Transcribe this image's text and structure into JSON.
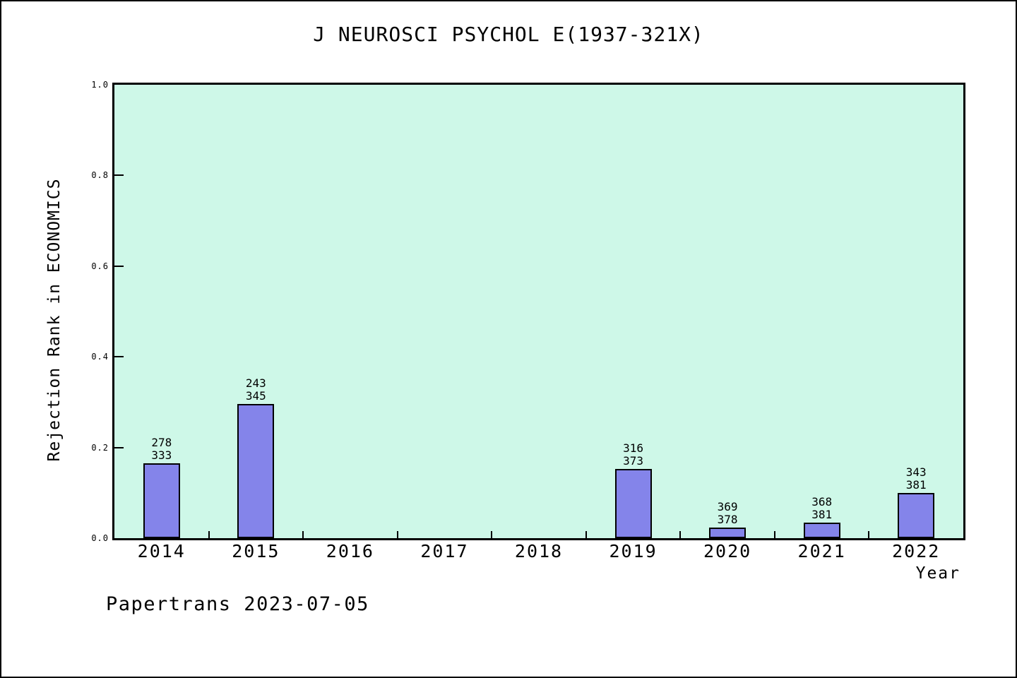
{
  "footer": "Papertrans 2023-07-05",
  "chart_data": {
    "type": "bar",
    "title": "J NEUROSCI PSYCHOL E(1937-321X)",
    "xlabel": "Year",
    "ylabel": "Rejection Rank in ECONOMICS",
    "categories": [
      "2014",
      "2015",
      "2016",
      "2017",
      "2018",
      "2019",
      "2020",
      "2021",
      "2022"
    ],
    "values": [
      0.1652,
      0.2957,
      null,
      null,
      null,
      0.1528,
      0.0238,
      0.0341,
      0.0997
    ],
    "bar_labels": [
      [
        "278",
        "333"
      ],
      [
        "243",
        "345"
      ],
      null,
      null,
      null,
      [
        "316",
        "373"
      ],
      [
        "369",
        "378"
      ],
      [
        "368",
        "381"
      ],
      [
        "343",
        "381"
      ]
    ],
    "ylim": [
      0.0,
      1.0
    ],
    "yticks": [
      0.0,
      0.2,
      0.4,
      0.6,
      0.8,
      1.0
    ],
    "grid": "off",
    "legend": "none",
    "colors": {
      "plot_bg": "#CEF8E8",
      "bar_fill": "#8484EA",
      "bar_border": "#000000",
      "axis": "#000000",
      "text": "#000000",
      "page_bg": "#FFFFFF"
    }
  }
}
